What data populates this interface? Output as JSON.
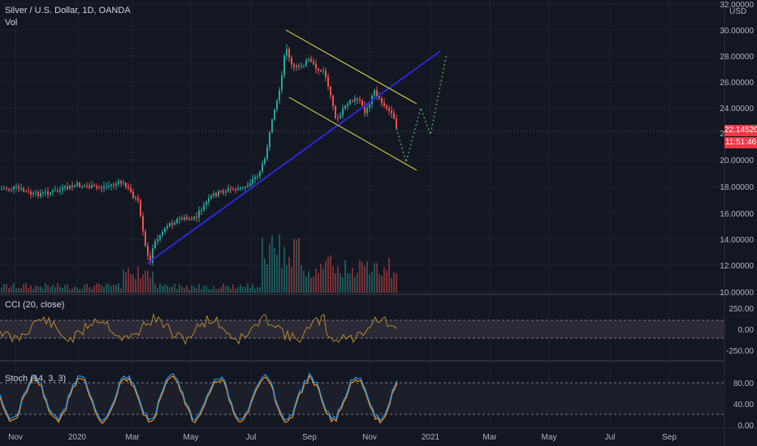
{
  "header": {
    "title": "Silver / U.S. Dollar, 1D, OANDA",
    "volume_label": "Vol",
    "currency": "USD"
  },
  "price_axis": {
    "ticks": [
      "32.00000",
      "30.00000",
      "28.00000",
      "26.00000",
      "24.00000",
      "22.00000",
      "20.00000",
      "18.00000",
      "16.00000",
      "14.00000",
      "12.00000",
      "10.00000"
    ]
  },
  "current_price": {
    "value": "22.14520",
    "countdown": "11:51:46",
    "color": "#f23645"
  },
  "cci": {
    "label": "CCI (20, close)",
    "ticks": [
      "250.00",
      "0.00",
      "-250.00"
    ]
  },
  "stoch": {
    "label": "Stoch (14, 3, 3)",
    "ticks": [
      "80.00",
      "40.00",
      "0.00"
    ]
  },
  "time_axis": {
    "ticks": [
      "Nov",
      "2020",
      "Mar",
      "May",
      "Jul",
      "Sep",
      "Nov",
      "2021",
      "Mar",
      "May",
      "Jul",
      "Sep"
    ]
  },
  "colors": {
    "up": "#26a69a",
    "down": "#ef5350",
    "channel": "#ffeb3b",
    "trend": "#2a2ad8",
    "forecast": "#4caf50"
  }
}
